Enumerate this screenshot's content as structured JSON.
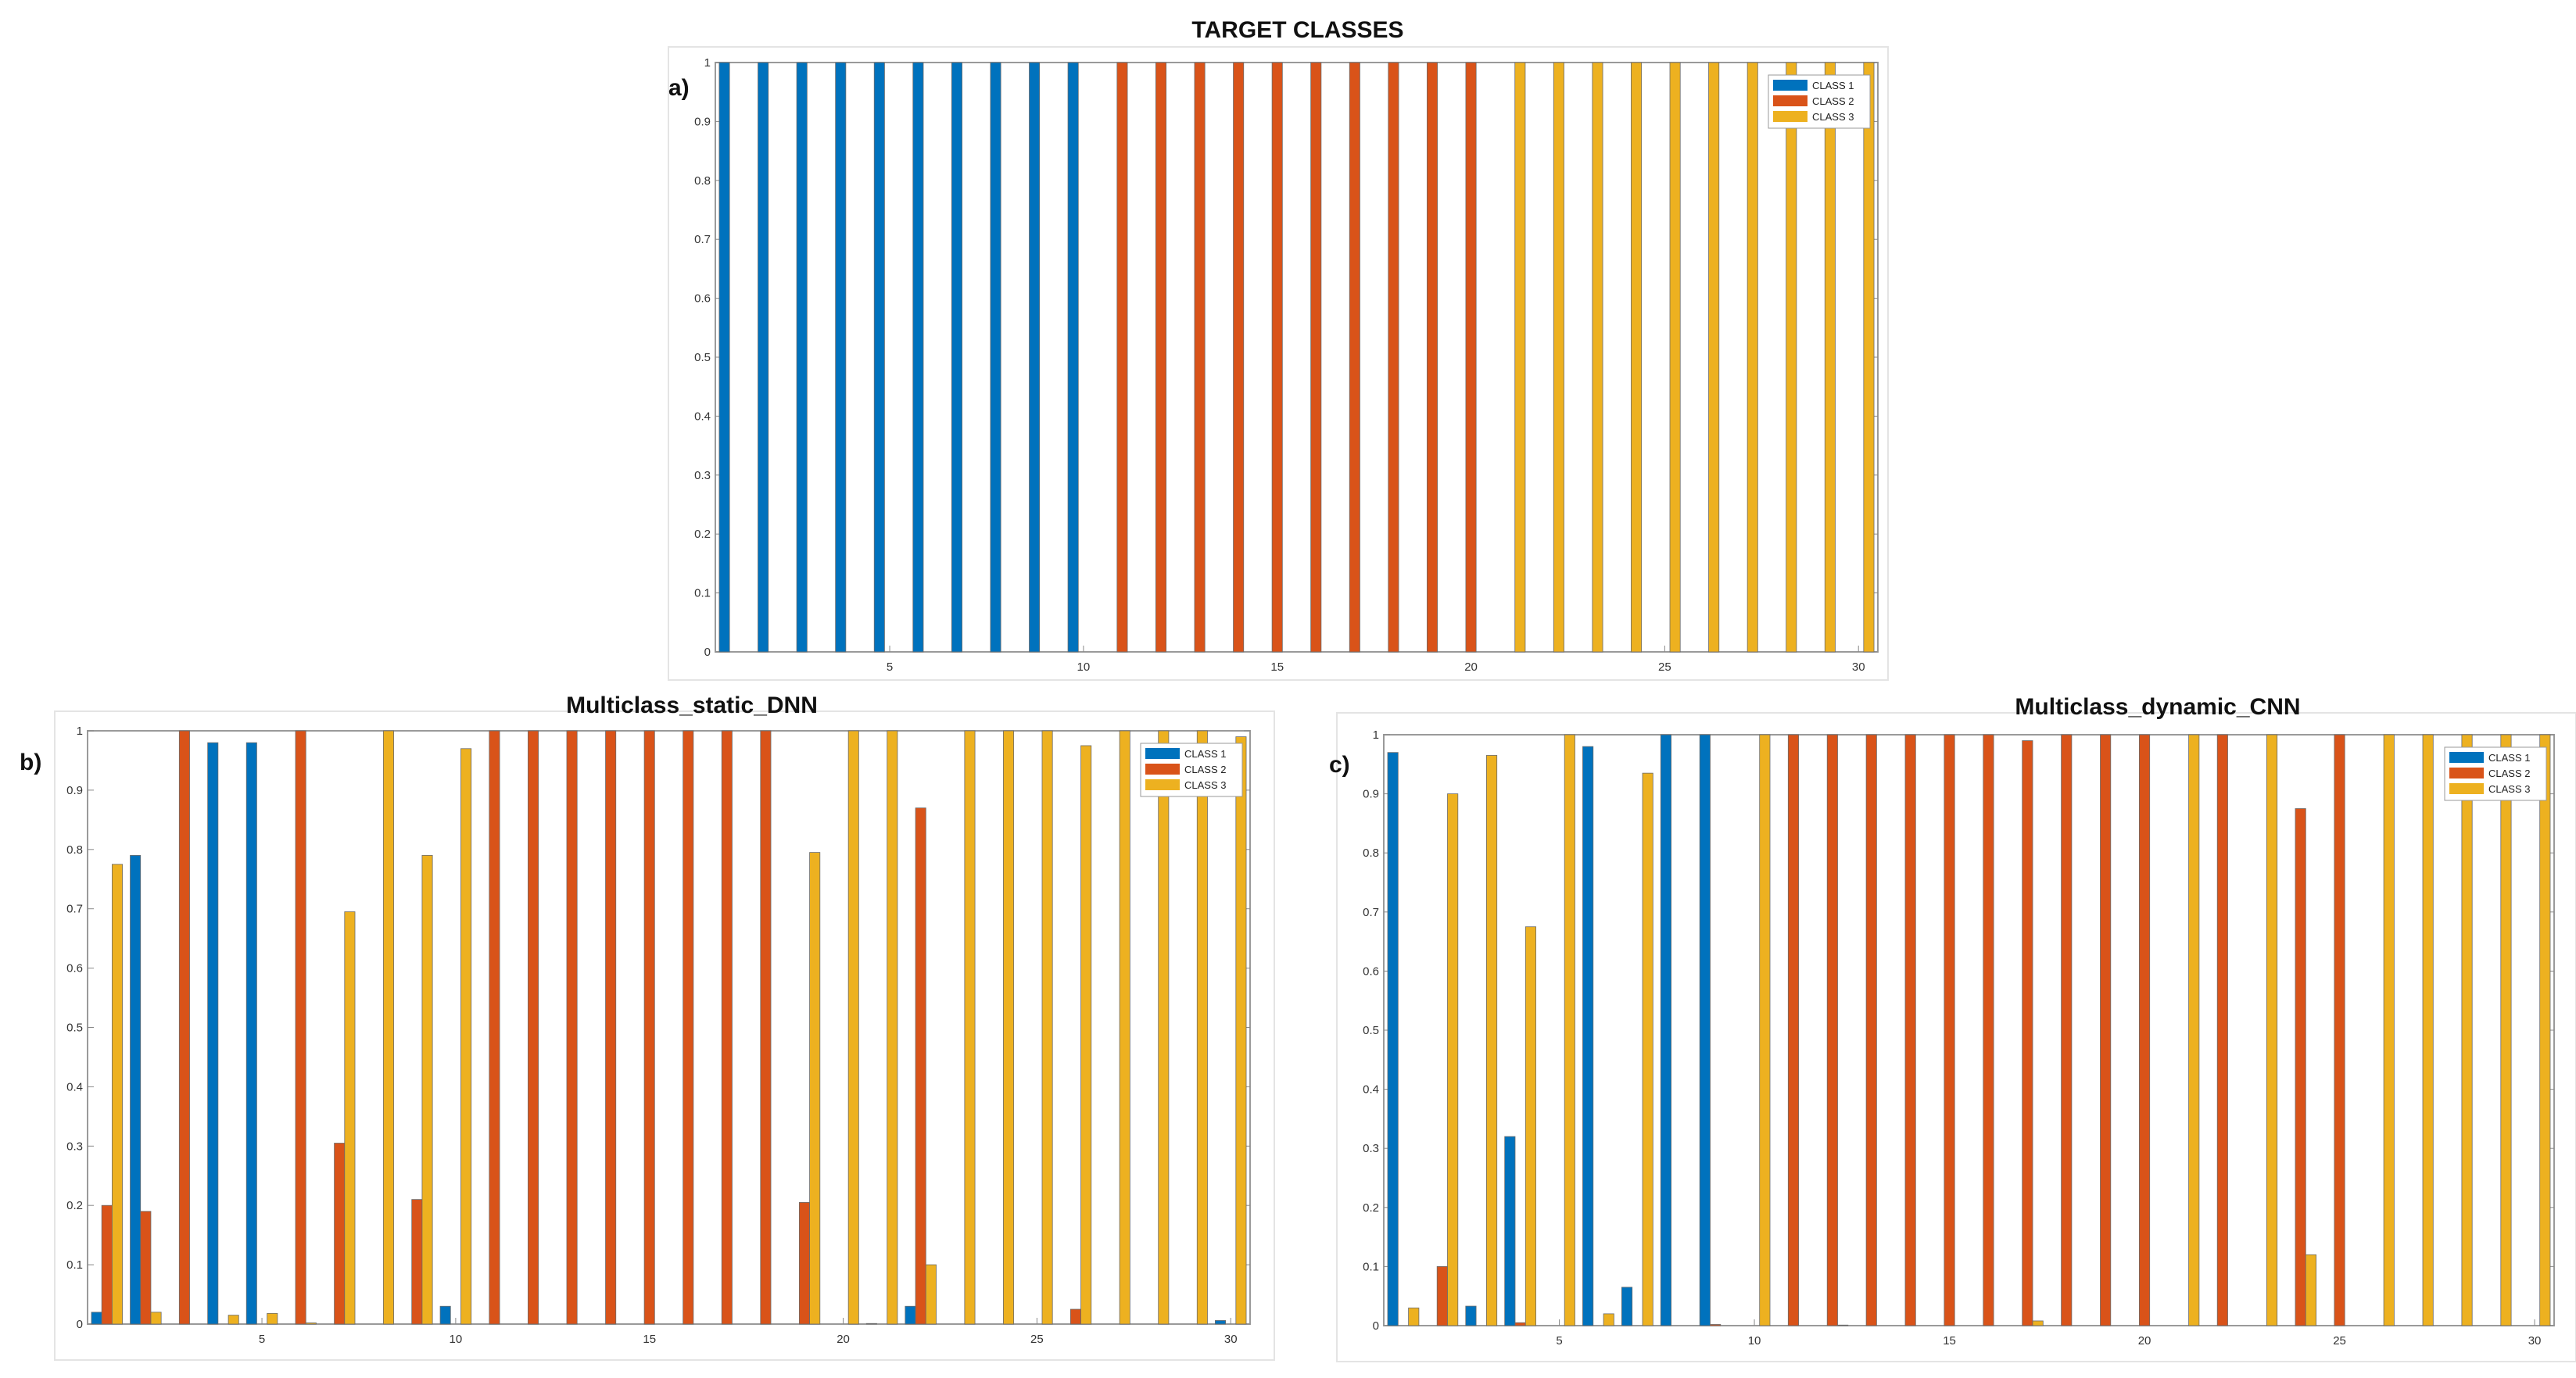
{
  "colors": {
    "class_1": "#0072BD",
    "class_2": "#D95319",
    "class_3": "#EDB120"
  },
  "chart_data": [
    {
      "type": "bar",
      "panel_label": "a)",
      "title": "TARGET CLASSES",
      "x": [
        1,
        2,
        3,
        4,
        5,
        6,
        7,
        8,
        9,
        10,
        11,
        12,
        13,
        14,
        15,
        16,
        17,
        18,
        19,
        20,
        21,
        22,
        23,
        24,
        25,
        26,
        27,
        28,
        29,
        30
      ],
      "xticks": [
        5,
        10,
        15,
        20,
        25,
        30
      ],
      "yticks": [
        0,
        0.1,
        0.2,
        0.3,
        0.4,
        0.5,
        0.6,
        0.7,
        0.8,
        0.9,
        1
      ],
      "ylim": [
        0,
        1
      ],
      "legend_position": "top-right",
      "series": [
        {
          "name": "CLASS 1",
          "values": [
            1,
            1,
            1,
            1,
            1,
            1,
            1,
            1,
            1,
            1,
            0,
            0,
            0,
            0,
            0,
            0,
            0,
            0,
            0,
            0,
            0,
            0,
            0,
            0,
            0,
            0,
            0,
            0,
            0,
            0
          ]
        },
        {
          "name": "CLASS 2",
          "values": [
            0,
            0,
            0,
            0,
            0,
            0,
            0,
            0,
            0,
            0,
            1,
            1,
            1,
            1,
            1,
            1,
            1,
            1,
            1,
            1,
            0,
            0,
            0,
            0,
            0,
            0,
            0,
            0,
            0,
            0
          ]
        },
        {
          "name": "CLASS 3",
          "values": [
            0,
            0,
            0,
            0,
            0,
            0,
            0,
            0,
            0,
            0,
            0,
            0,
            0,
            0,
            0,
            0,
            0,
            0,
            0,
            0,
            1,
            1,
            1,
            1,
            1,
            1,
            1,
            1,
            1,
            1
          ]
        }
      ]
    },
    {
      "type": "bar",
      "panel_label": "b)",
      "title": "Multiclass_static_DNN",
      "x": [
        1,
        2,
        3,
        4,
        5,
        6,
        7,
        8,
        9,
        10,
        11,
        12,
        13,
        14,
        15,
        16,
        17,
        18,
        19,
        20,
        21,
        22,
        23,
        24,
        25,
        26,
        27,
        28,
        29,
        30
      ],
      "xticks": [
        5,
        10,
        15,
        20,
        25,
        30
      ],
      "yticks": [
        0,
        0.1,
        0.2,
        0.3,
        0.4,
        0.5,
        0.6,
        0.7,
        0.8,
        0.9,
        1
      ],
      "ylim": [
        0,
        1
      ],
      "legend_position": "top-right",
      "series": [
        {
          "name": "CLASS 1",
          "values": [
            0.02,
            0.79,
            0,
            0.98,
            0.98,
            0,
            0,
            0,
            0,
            0.03,
            0,
            0,
            0,
            0,
            0,
            0,
            0,
            0,
            0,
            0,
            0.001,
            0.03,
            0,
            0,
            0,
            0,
            0,
            0,
            0,
            0.006
          ]
        },
        {
          "name": "CLASS 2",
          "values": [
            0.2,
            0.19,
            1,
            0,
            0,
            1,
            0.305,
            0,
            0.21,
            0,
            1,
            1,
            1,
            1,
            1,
            1,
            1,
            1,
            0.205,
            0,
            0,
            0.87,
            0,
            0,
            0,
            0.025,
            0,
            0,
            0,
            0
          ]
        },
        {
          "name": "CLASS 3",
          "values": [
            0.775,
            0.02,
            0,
            0.015,
            0.018,
            0.002,
            0.695,
            1,
            0.79,
            0.97,
            0,
            0,
            0,
            0,
            0,
            0,
            0,
            0,
            0.795,
            1,
            1,
            0.1,
            1,
            1,
            1,
            0.975,
            1,
            1,
            1,
            0.99
          ]
        }
      ]
    },
    {
      "type": "bar",
      "panel_label": "c)",
      "title": "Multiclass_dynamic_CNN",
      "x": [
        1,
        2,
        3,
        4,
        5,
        6,
        7,
        8,
        9,
        10,
        11,
        12,
        13,
        14,
        15,
        16,
        17,
        18,
        19,
        20,
        21,
        22,
        23,
        24,
        25,
        26,
        27,
        28,
        29,
        30
      ],
      "xticks": [
        5,
        10,
        15,
        20,
        25,
        30
      ],
      "yticks": [
        0,
        0.1,
        0.2,
        0.3,
        0.4,
        0.5,
        0.6,
        0.7,
        0.8,
        0.9,
        1
      ],
      "ylim": [
        0,
        1
      ],
      "legend_position": "top-right",
      "series": [
        {
          "name": "CLASS 1",
          "values": [
            0.97,
            0,
            0.033,
            0.32,
            0,
            0.98,
            0.065,
            1,
            1,
            0,
            0,
            0,
            0,
            0,
            0,
            0,
            0,
            0,
            0,
            0,
            0,
            0,
            0,
            0,
            0,
            0,
            0,
            0,
            0,
            0
          ]
        },
        {
          "name": "CLASS 2",
          "values": [
            0,
            0.1,
            0,
            0.005,
            0,
            0,
            0,
            0,
            0.002,
            0,
            1,
            1,
            1,
            1,
            1,
            1,
            0.99,
            1,
            1,
            1,
            0,
            1,
            0,
            0.875,
            1,
            0,
            0,
            0,
            0,
            0
          ]
        },
        {
          "name": "CLASS 3",
          "values": [
            0.03,
            0.9,
            0.965,
            0.675,
            1,
            0.02,
            0.935,
            0,
            0,
            1,
            0,
            0.001,
            0,
            0,
            0,
            0,
            0.008,
            0,
            0,
            0,
            1,
            0,
            1,
            0.12,
            0,
            1,
            1,
            1,
            1,
            1
          ]
        }
      ]
    }
  ]
}
